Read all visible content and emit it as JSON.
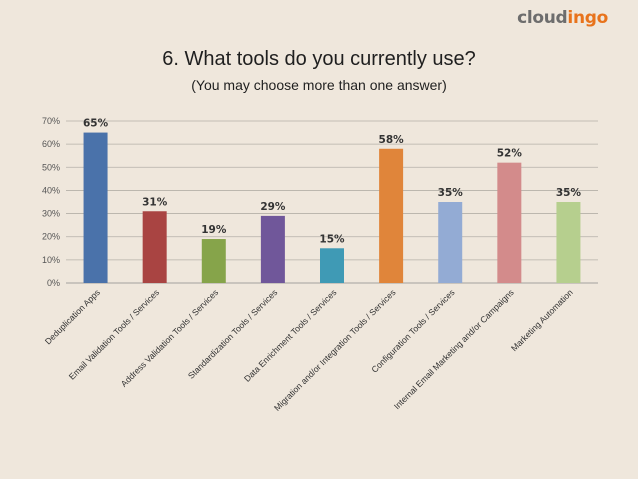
{
  "brand": {
    "logo_part1": "cloud",
    "logo_part2": "ingo",
    "colors": {
      "part1": "#6d6d6d",
      "part2": "#e8731c"
    }
  },
  "chart_data": {
    "type": "bar",
    "title": "6. What tools do you currently use?",
    "subtitle": "(You may choose more than one answer)",
    "categories": [
      "Deduplication Apps",
      "Email Validation Tools / Services",
      "Address Validation Tools / Services",
      "Standardization Tools / Services",
      "Data Enrichment Tools / Services",
      "Migration and/or Integration Tools / Services",
      "Configuration Tools / Services",
      "Internal Email Marketing and/or Campaigns",
      "Marketing Automation"
    ],
    "values": [
      65,
      31,
      19,
      29,
      15,
      58,
      35,
      52,
      35
    ],
    "value_labels": [
      "65%",
      "31%",
      "19%",
      "29%",
      "15%",
      "58%",
      "35%",
      "52%",
      "35%"
    ],
    "colors": [
      "#4a72aa",
      "#a94442",
      "#86a44a",
      "#70579a",
      "#3f9ab5",
      "#e0853a",
      "#93abd4",
      "#d38b8b",
      "#b6cf8e"
    ],
    "ylim": [
      0,
      70
    ],
    "yticks": [
      0,
      10,
      20,
      30,
      40,
      50,
      60,
      70
    ],
    "ytick_labels": [
      "0%",
      "10%",
      "20%",
      "30%",
      "40%",
      "50%",
      "60%",
      "70%"
    ],
    "grid": true,
    "legend": "none"
  }
}
